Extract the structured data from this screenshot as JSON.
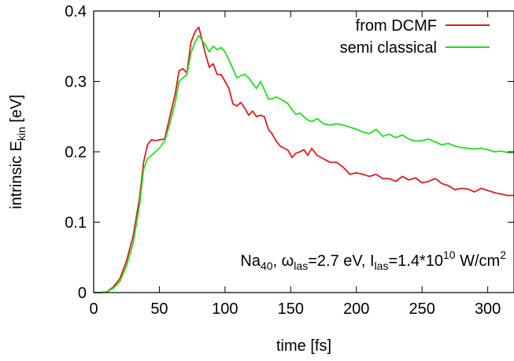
{
  "chart_data": {
    "type": "line",
    "title": "",
    "xlabel": "time [fs]",
    "ylabel": {
      "main": "intrinsic E",
      "sub": "kin",
      "tail": " [eV]"
    },
    "xlim": [
      0,
      320
    ],
    "ylim": [
      0,
      0.4
    ],
    "xticks": [
      0,
      50,
      100,
      150,
      200,
      250,
      300
    ],
    "yticks": [
      0,
      0.1,
      0.2,
      0.3,
      0.4
    ],
    "xtick_labels": [
      "0",
      "50",
      "100",
      "150",
      "200",
      "250",
      "300"
    ],
    "ytick_labels": [
      "0",
      "0.1",
      "0.2",
      "0.3",
      "0.4"
    ],
    "grid": false,
    "legend_position": "top-right",
    "annotation": {
      "na": "Na",
      "na_sub": "40",
      "omega_prefix": ", ω",
      "omega_sub": "las",
      "omega_value": "=2.7 eV, I",
      "i_sub": "las",
      "i_value": "=1.4*10",
      "i_exp": "10",
      "unit": " W/cm",
      "unit_exp": "2"
    },
    "series": [
      {
        "name": "from DCMF",
        "color": "#e31a1c",
        "x": [
          0,
          5,
          10,
          15,
          20,
          25,
          30,
          35,
          38,
          41,
          44,
          47,
          50,
          54,
          58,
          62,
          65,
          68,
          71,
          74,
          77,
          80,
          82,
          85,
          88,
          91,
          94,
          97,
          100,
          103,
          106,
          109,
          112,
          115,
          118,
          121,
          124,
          127,
          130,
          133,
          136,
          139,
          142,
          145,
          148,
          151,
          154,
          157,
          160,
          163,
          166,
          170,
          175,
          180,
          185,
          190,
          195,
          200,
          205,
          210,
          215,
          220,
          225,
          230,
          235,
          240,
          245,
          250,
          255,
          260,
          265,
          270,
          275,
          280,
          285,
          290,
          295,
          300,
          305,
          310,
          315,
          320
        ],
        "y": [
          0,
          0,
          0.001,
          0.008,
          0.02,
          0.045,
          0.08,
          0.135,
          0.185,
          0.21,
          0.217,
          0.216,
          0.217,
          0.218,
          0.25,
          0.282,
          0.315,
          0.318,
          0.312,
          0.355,
          0.37,
          0.377,
          0.363,
          0.34,
          0.32,
          0.325,
          0.31,
          0.31,
          0.3,
          0.29,
          0.268,
          0.265,
          0.27,
          0.262,
          0.252,
          0.258,
          0.25,
          0.252,
          0.25,
          0.232,
          0.225,
          0.215,
          0.208,
          0.205,
          0.202,
          0.192,
          0.198,
          0.2,
          0.203,
          0.195,
          0.205,
          0.195,
          0.19,
          0.185,
          0.185,
          0.178,
          0.168,
          0.17,
          0.168,
          0.165,
          0.168,
          0.162,
          0.162,
          0.158,
          0.165,
          0.16,
          0.163,
          0.156,
          0.158,
          0.162,
          0.155,
          0.152,
          0.146,
          0.148,
          0.147,
          0.143,
          0.148,
          0.145,
          0.142,
          0.14,
          0.138,
          0.138
        ]
      },
      {
        "name": "semi classical",
        "color": "#1ee01e",
        "x": [
          0,
          5,
          10,
          15,
          20,
          25,
          30,
          35,
          38,
          41,
          44,
          47,
          50,
          54,
          58,
          62,
          65,
          68,
          71,
          74,
          77,
          80,
          82,
          85,
          88,
          91,
          94,
          97,
          100,
          103,
          106,
          109,
          112,
          115,
          118,
          121,
          124,
          127,
          130,
          133,
          136,
          139,
          142,
          145,
          148,
          151,
          154,
          157,
          160,
          163,
          166,
          170,
          175,
          180,
          185,
          190,
          195,
          200,
          205,
          210,
          215,
          220,
          225,
          230,
          235,
          240,
          245,
          250,
          255,
          260,
          265,
          270,
          275,
          280,
          285,
          290,
          295,
          300,
          305,
          310,
          315,
          320
        ],
        "y": [
          0,
          0,
          0.001,
          0.006,
          0.016,
          0.038,
          0.07,
          0.125,
          0.175,
          0.19,
          0.195,
          0.2,
          0.205,
          0.215,
          0.24,
          0.27,
          0.3,
          0.305,
          0.31,
          0.34,
          0.355,
          0.365,
          0.36,
          0.352,
          0.342,
          0.35,
          0.345,
          0.348,
          0.342,
          0.33,
          0.318,
          0.305,
          0.308,
          0.31,
          0.305,
          0.297,
          0.29,
          0.3,
          0.288,
          0.275,
          0.275,
          0.278,
          0.275,
          0.272,
          0.268,
          0.26,
          0.253,
          0.255,
          0.25,
          0.245,
          0.243,
          0.247,
          0.24,
          0.238,
          0.24,
          0.238,
          0.235,
          0.232,
          0.228,
          0.226,
          0.232,
          0.222,
          0.225,
          0.22,
          0.224,
          0.218,
          0.215,
          0.216,
          0.218,
          0.214,
          0.21,
          0.212,
          0.208,
          0.206,
          0.205,
          0.204,
          0.205,
          0.203,
          0.2,
          0.201,
          0.199,
          0.199
        ]
      }
    ]
  }
}
